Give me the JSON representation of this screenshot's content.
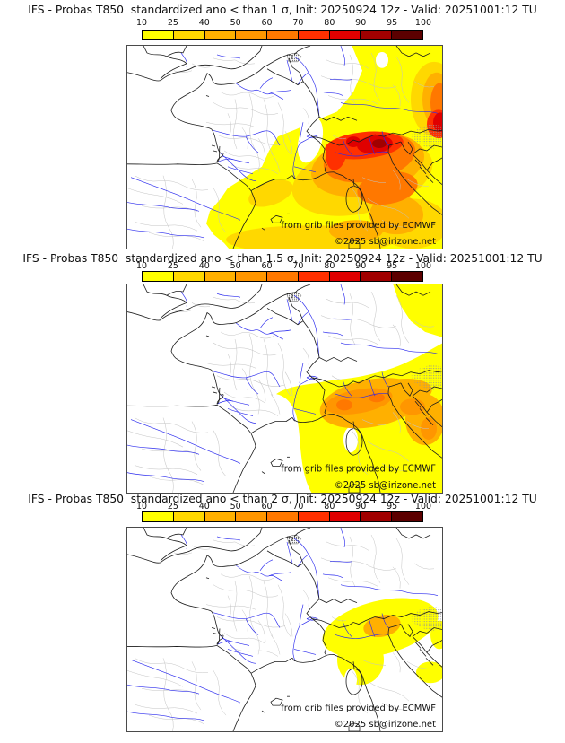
{
  "colorbar": {
    "ticks": [
      "10",
      "25",
      "40",
      "50",
      "60",
      "70",
      "80",
      "90",
      "95",
      "100"
    ],
    "colors": [
      "#ffff00",
      "#ffd800",
      "#ffb000",
      "#ff9600",
      "#ff7800",
      "#ff3000",
      "#e00000",
      "#a00000",
      "#5c0000"
    ]
  },
  "panels": [
    {
      "title": "IFS - Probas T850  standardized ano < than 1 σ, Init: 20250924 12z - Valid: 20251001:12 TU",
      "attribution": "from grib files provided by ECMWF",
      "copyright": "©2025 sb@irizone.net"
    },
    {
      "title": "IFS - Probas T850  standardized ano < than 1.5 σ, Init: 20250924 12z - Valid: 20251001:12 TU",
      "attribution": "from grib files provided by ECMWF",
      "copyright": "©2025 sb@irizone.net"
    },
    {
      "title": "IFS - Probas T850  standardized ano < than 2 σ, Init: 20250924 12z - Valid: 20251001:12 TU",
      "attribution": "from grib files provided by ECMWF",
      "copyright": "©2025 sb@irizone.net"
    }
  ]
}
